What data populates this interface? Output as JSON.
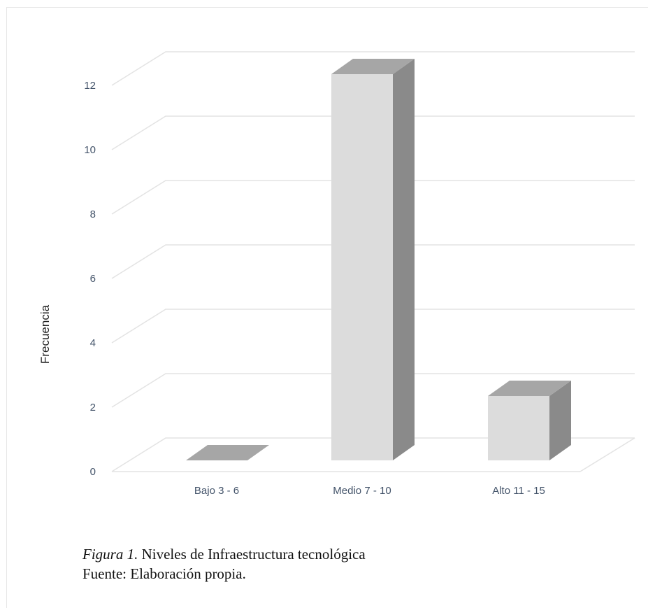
{
  "chart_data": {
    "type": "bar",
    "categories": [
      "Bajo 3 - 6",
      "Medio 7 - 10",
      "Alto 11 - 15"
    ],
    "values": [
      0,
      12,
      2
    ],
    "ylabel": "Frecuencia",
    "xlabel": "",
    "ylim": [
      0,
      12
    ],
    "yticks": [
      0,
      2,
      4,
      6,
      8,
      10,
      12
    ],
    "grid": true,
    "style": "3d-column",
    "colors": {
      "front": "#dcdcdc",
      "top": "#a6a6a6",
      "side": "#8a8a8a",
      "grid": "#e3e3e3"
    }
  },
  "caption": {
    "figure_label": "Figura 1.",
    "figure_title": " Niveles de Infraestructura tecnológica",
    "source": "Fuente: Elaboración propia."
  }
}
